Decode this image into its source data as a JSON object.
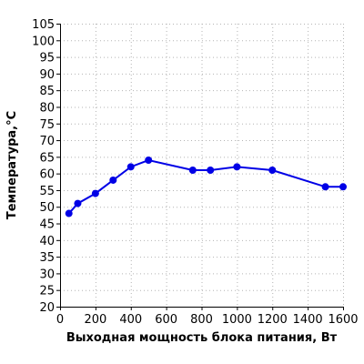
{
  "chart_data": {
    "type": "line",
    "title": "",
    "xlabel": "Выходная мощность блока питания, Вт",
    "ylabel": "Температура,°С",
    "xlim": [
      0,
      1600
    ],
    "ylim": [
      20,
      105
    ],
    "xticks": [
      0,
      200,
      400,
      600,
      800,
      1000,
      1200,
      1400,
      1600
    ],
    "yticks": [
      20,
      25,
      30,
      35,
      40,
      45,
      50,
      55,
      60,
      65,
      70,
      75,
      80,
      85,
      90,
      95,
      100,
      105
    ],
    "grid": true,
    "legend": "none",
    "series": [
      {
        "color": "#0000e6",
        "x": [
          50,
          100,
          200,
          300,
          400,
          500,
          750,
          850,
          1000,
          1200,
          1500,
          1600
        ],
        "y": [
          48,
          51,
          54,
          58,
          62,
          64,
          61,
          61,
          62,
          61,
          56,
          56
        ]
      }
    ]
  }
}
